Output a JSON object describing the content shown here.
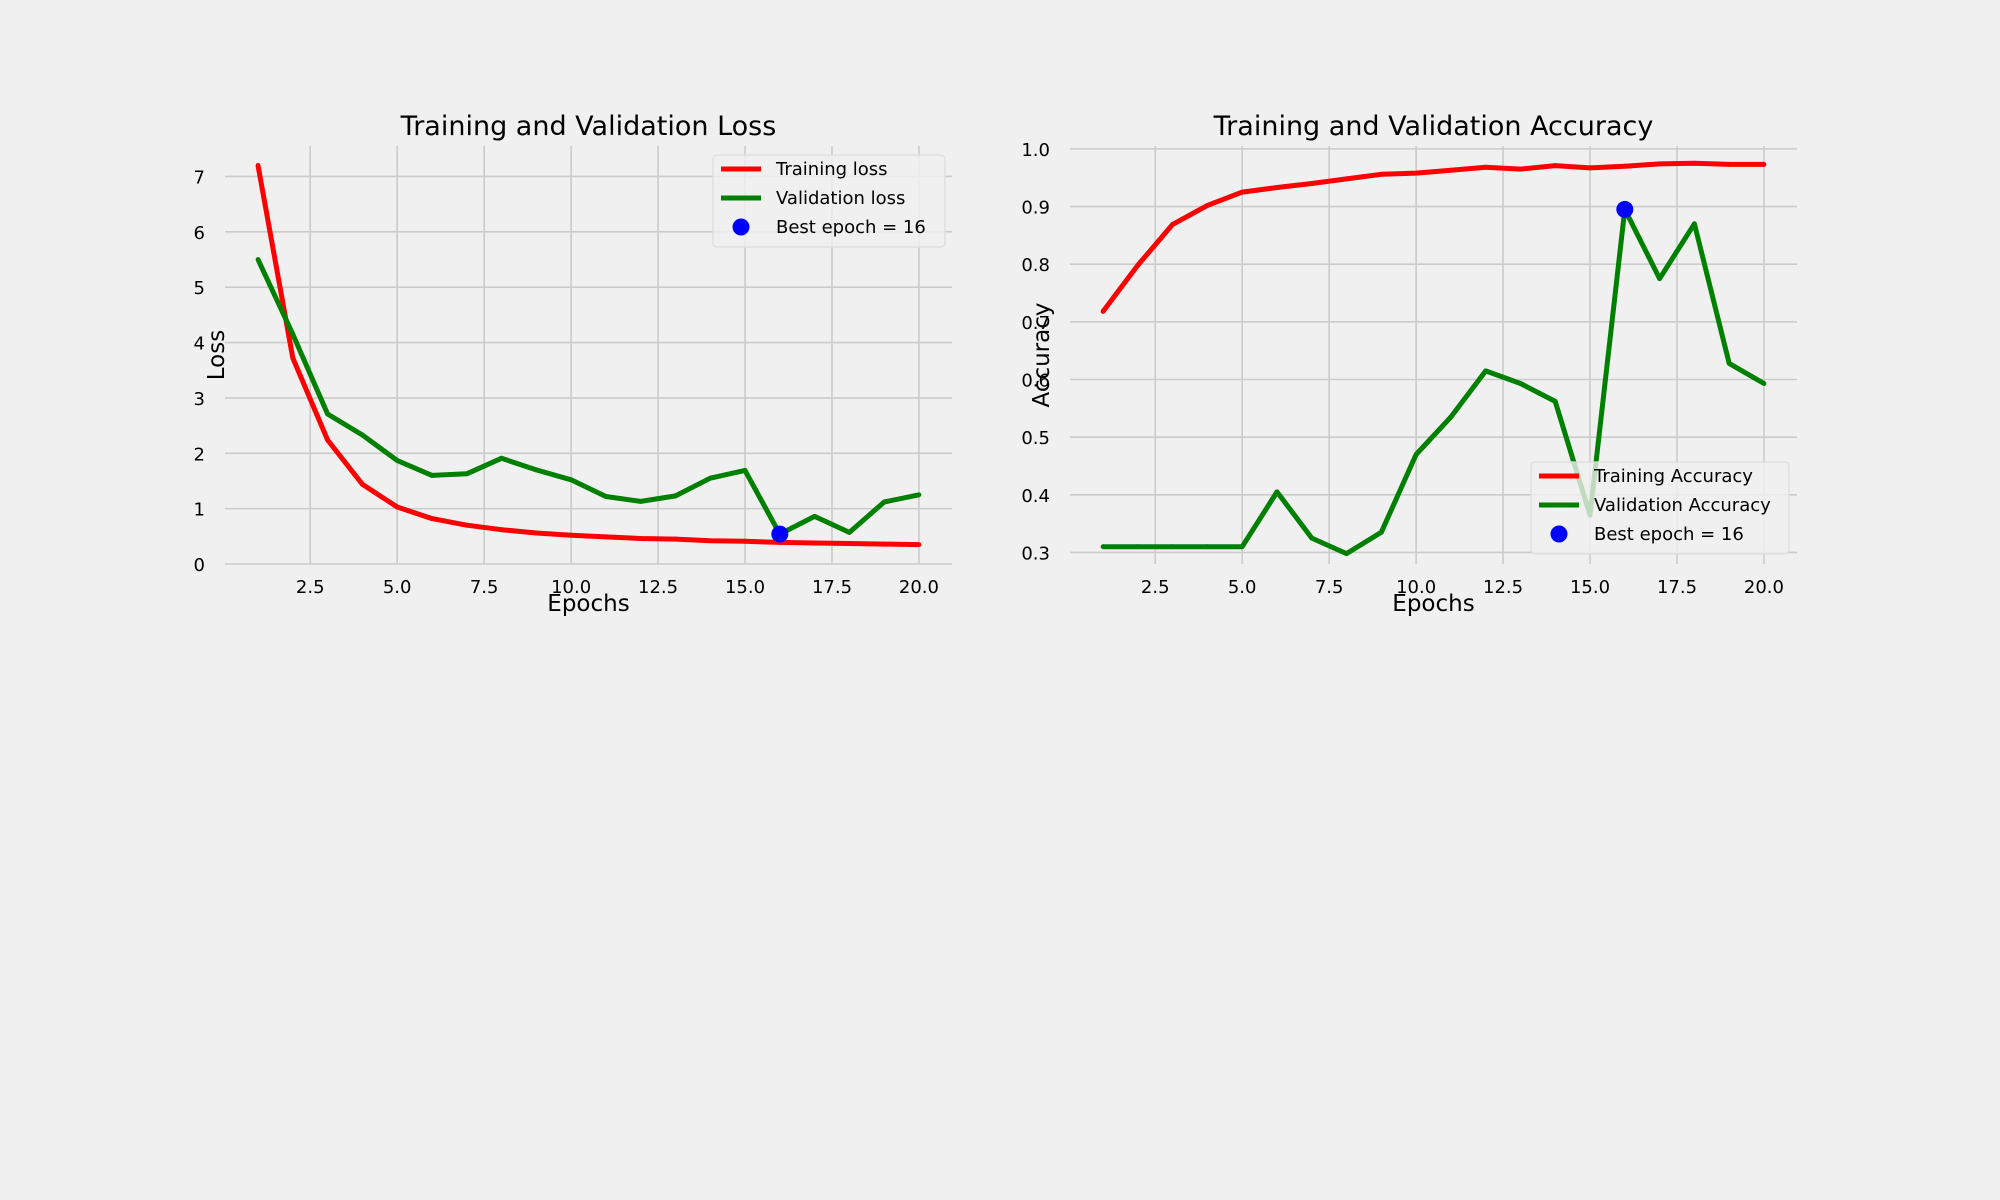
{
  "figure": {
    "background": "#f0f0f0",
    "grid_color": "#cbcbcb"
  },
  "chart_data": [
    {
      "type": "line",
      "title": "Training and Validation Loss",
      "xlabel": "Epochs",
      "ylabel": "Loss",
      "xlim": [
        0.05,
        20.95
      ],
      "ylim": [
        0,
        7.55
      ],
      "xticks": [
        2.5,
        5.0,
        7.5,
        10.0,
        12.5,
        15.0,
        17.5,
        20.0
      ],
      "xtick_labels": [
        "2.5",
        "5.0",
        "7.5",
        "10.0",
        "12.5",
        "15.0",
        "17.5",
        "20.0"
      ],
      "yticks": [
        0,
        1,
        2,
        3,
        4,
        5,
        6,
        7
      ],
      "ytick_labels": [
        "0",
        "1",
        "2",
        "3",
        "4",
        "5",
        "6",
        "7"
      ],
      "grid": true,
      "legend_position": "upper right",
      "x": [
        1,
        2,
        3,
        4,
        5,
        6,
        7,
        8,
        9,
        10,
        11,
        12,
        13,
        14,
        15,
        16,
        17,
        18,
        19,
        20
      ],
      "series": [
        {
          "name": "Training loss",
          "color": "#ff0000",
          "values": [
            7.2,
            3.72,
            2.24,
            1.44,
            1.03,
            0.82,
            0.7,
            0.62,
            0.56,
            0.52,
            0.49,
            0.46,
            0.45,
            0.42,
            0.41,
            0.39,
            0.38,
            0.37,
            0.36,
            0.35
          ]
        },
        {
          "name": "Validation loss",
          "color": "#008000",
          "values": [
            5.5,
            4.15,
            2.71,
            2.33,
            1.87,
            1.6,
            1.63,
            1.91,
            1.7,
            1.52,
            1.22,
            1.13,
            1.23,
            1.55,
            1.69,
            0.54,
            0.86,
            0.57,
            1.12,
            1.25
          ]
        }
      ],
      "best_point": {
        "label": "Best epoch = 16",
        "x": 16,
        "y": 0.54,
        "color": "#0000ff"
      }
    },
    {
      "type": "line",
      "title": "Training and Validation Accuracy",
      "xlabel": "Epochs",
      "ylabel": "Accuracy",
      "xlim": [
        0.05,
        20.95
      ],
      "ylim": [
        0.28,
        1.005
      ],
      "xticks": [
        2.5,
        5.0,
        7.5,
        10.0,
        12.5,
        15.0,
        17.5,
        20.0
      ],
      "xtick_labels": [
        "2.5",
        "5.0",
        "7.5",
        "10.0",
        "12.5",
        "15.0",
        "17.5",
        "20.0"
      ],
      "yticks": [
        0.3,
        0.4,
        0.5,
        0.6,
        0.7,
        0.8,
        0.9,
        1.0
      ],
      "ytick_labels": [
        "0.3",
        "0.4",
        "0.5",
        "0.6",
        "0.7",
        "0.8",
        "0.9",
        "1.0"
      ],
      "grid": true,
      "legend_position": "lower right",
      "x": [
        1,
        2,
        3,
        4,
        5,
        6,
        7,
        8,
        9,
        10,
        11,
        12,
        13,
        14,
        15,
        16,
        17,
        18,
        19,
        20
      ],
      "series": [
        {
          "name": "Training Accuracy",
          "color": "#ff0000",
          "values": [
            0.718,
            0.798,
            0.869,
            0.902,
            0.925,
            0.933,
            0.94,
            0.948,
            0.956,
            0.958,
            0.963,
            0.968,
            0.965,
            0.971,
            0.967,
            0.97,
            0.974,
            0.975,
            0.973,
            0.973
          ]
        },
        {
          "name": "Validation Accuracy",
          "color": "#008000",
          "values": [
            0.31,
            0.31,
            0.31,
            0.31,
            0.31,
            0.405,
            0.325,
            0.298,
            0.335,
            0.47,
            0.535,
            0.615,
            0.593,
            0.562,
            0.365,
            0.895,
            0.775,
            0.87,
            0.628,
            0.593
          ]
        }
      ],
      "best_point": {
        "label": "Best epoch = 16",
        "x": 16,
        "y": 0.895,
        "color": "#0000ff"
      }
    }
  ]
}
